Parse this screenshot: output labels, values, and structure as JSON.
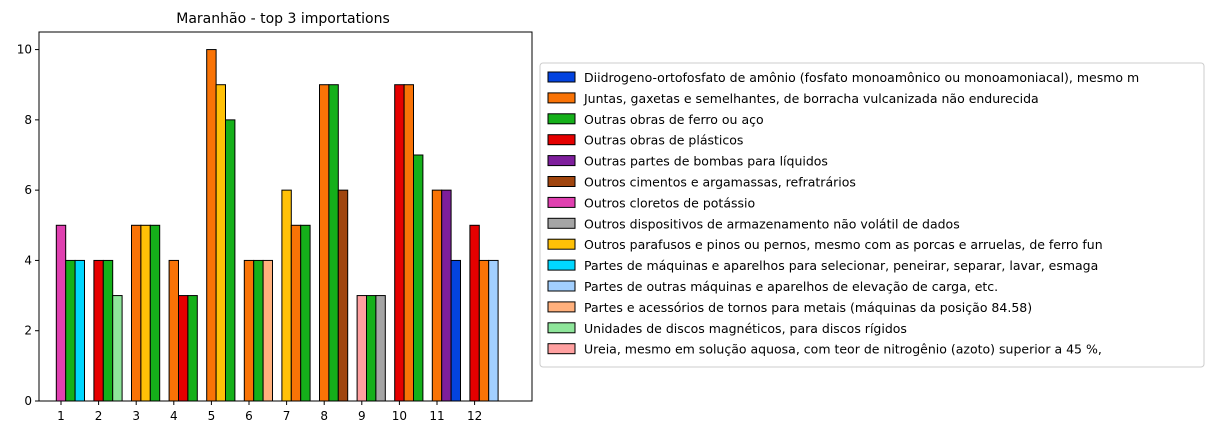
{
  "chart_data": {
    "type": "bar",
    "title": "Maranhão - top 3 importations",
    "xlabel": "",
    "ylabel": "",
    "ylim": [
      0,
      10.5
    ],
    "yticks": [
      0,
      2,
      4,
      6,
      8,
      10
    ],
    "categories": [
      "1",
      "2",
      "3",
      "4",
      "5",
      "6",
      "7",
      "8",
      "9",
      "10",
      "11",
      "12"
    ],
    "grid": false,
    "legend_position": "right",
    "series": [
      {
        "name": "Diidrogeno-ortofosfato de amônio (fosfato monoamônico ou monoamoniacal), mesmo m",
        "color": "#0343df",
        "values": [
          null,
          null,
          null,
          null,
          null,
          null,
          null,
          null,
          null,
          null,
          4,
          null
        ]
      },
      {
        "name": "Juntas, gaxetas e semelhantes, de borracha vulcanizada não endurecida",
        "color": "#f97306",
        "values": [
          null,
          null,
          5,
          4,
          10,
          4,
          5,
          9,
          null,
          9,
          6,
          4
        ]
      },
      {
        "name": "Outras obras de ferro ou aço",
        "color": "#15b01a",
        "values": [
          4,
          4,
          5,
          3,
          8,
          4,
          5,
          9,
          3,
          7,
          null,
          null
        ]
      },
      {
        "name": "Outras obras de plásticos",
        "color": "#e50000",
        "values": [
          null,
          4,
          null,
          3,
          null,
          null,
          null,
          null,
          null,
          9,
          null,
          5
        ]
      },
      {
        "name": "Outras partes de bombas para líquidos",
        "color": "#7e1e9c",
        "values": [
          null,
          null,
          null,
          null,
          null,
          null,
          null,
          null,
          null,
          null,
          6,
          null
        ]
      },
      {
        "name": "Outros cimentos e argamassas, refratrários",
        "color": "#a0450e",
        "values": [
          null,
          null,
          null,
          null,
          null,
          null,
          null,
          6,
          null,
          null,
          null,
          null
        ]
      },
      {
        "name": "Outros cloretos de potássio",
        "color": "#e040b0",
        "values": [
          5,
          null,
          null,
          null,
          null,
          null,
          null,
          null,
          null,
          null,
          null,
          null
        ]
      },
      {
        "name": "Outros dispositivos de armazenamento não volátil de dados",
        "color": "#a5a5a5",
        "values": [
          null,
          null,
          null,
          null,
          null,
          null,
          null,
          null,
          3,
          null,
          null,
          null
        ]
      },
      {
        "name": "Outros parafusos e pinos ou pernos, mesmo com as porcas e arruelas, de ferro fun",
        "color": "#ffc107",
        "values": [
          null,
          null,
          5,
          null,
          9,
          null,
          6,
          null,
          null,
          null,
          null,
          null
        ]
      },
      {
        "name": "Partes de máquinas e aparelhos para selecionar, peneirar, separar, lavar, esmaga",
        "color": "#00d7ff",
        "values": [
          4,
          null,
          null,
          null,
          null,
          null,
          null,
          null,
          null,
          null,
          null,
          null
        ]
      },
      {
        "name": "Partes de outras máquinas e aparelhos de elevação de carga, etc.",
        "color": "#a2cffe",
        "values": [
          null,
          null,
          null,
          null,
          null,
          null,
          null,
          null,
          null,
          null,
          null,
          4
        ]
      },
      {
        "name": "Partes e acessórios de tornos para metais (máquinas da posição 84.58)",
        "color": "#ffb07c",
        "values": [
          null,
          null,
          null,
          null,
          null,
          4,
          null,
          null,
          null,
          null,
          null,
          null
        ]
      },
      {
        "name": "Unidades de discos magnéticos, para discos rígidos",
        "color": "#8ee59a",
        "values": [
          null,
          3,
          null,
          null,
          null,
          null,
          null,
          null,
          null,
          null,
          null,
          null
        ]
      },
      {
        "name": "Ureia, mesmo em solução aquosa, com teor de nitrogênio (azoto) superior a 45 %,",
        "color": "#ffa0a0",
        "values": [
          null,
          null,
          null,
          null,
          null,
          null,
          null,
          null,
          3,
          null,
          null,
          null
        ]
      }
    ],
    "bar_order": [
      [
        6,
        2,
        9
      ],
      [
        3,
        2,
        12
      ],
      [
        1,
        8,
        2
      ],
      [
        1,
        3,
        2
      ],
      [
        1,
        8,
        2
      ],
      [
        1,
        2,
        11
      ],
      [
        8,
        1,
        2
      ],
      [
        1,
        2,
        5
      ],
      [
        13,
        2,
        7
      ],
      [
        3,
        1,
        2
      ],
      [
        1,
        4,
        0
      ],
      [
        3,
        1,
        10
      ]
    ]
  }
}
